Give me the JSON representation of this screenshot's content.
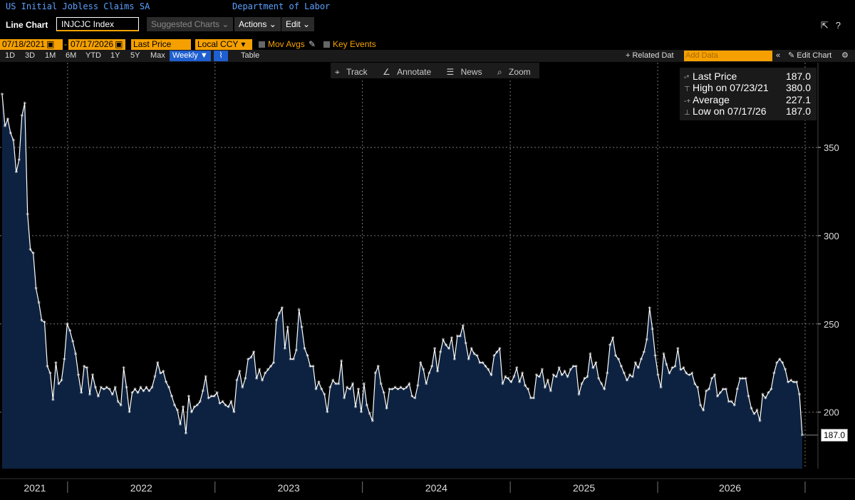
{
  "header": {
    "title": "US Initial Jobless Claims SA",
    "source": "Department of Labor"
  },
  "toolbar": {
    "chart_type": "Line Chart",
    "ticker": "INJCJC Index",
    "suggested": "Suggested Charts",
    "actions": "Actions",
    "edit": "Edit"
  },
  "controls": {
    "start_date": "07/18/2021",
    "sep": "-",
    "end_date": "07/17/2026",
    "price_field": "Last Price",
    "currency": "Local CCY",
    "mov_avgs": "Mov Avgs",
    "key_events": "Key Events"
  },
  "timeframes": [
    "1D",
    "3D",
    "1M",
    "6M",
    "YTD",
    "1Y",
    "5Y",
    "Max"
  ],
  "frequency": "Weekly ▼",
  "table_label": "Table",
  "related": "+ Related Dat",
  "add_data": "Add Data",
  "edit_chart": "Edit Chart",
  "tools": [
    "Track",
    "Annotate",
    "News",
    "Zoom"
  ],
  "legend": {
    "last_label": "Last Price",
    "last_value": "187.0",
    "high_label": "High on 07/23/21",
    "high_value": "380.0",
    "avg_label": "Average",
    "avg_value": "227.1",
    "low_label": "Low on 07/17/26",
    "low_value": "187.0"
  },
  "colors": {
    "line": "#ffffff",
    "fill": "#0d2240",
    "accent": "#f5a000",
    "link": "#5aa0ff",
    "grid": "#777777"
  },
  "chart_data": {
    "type": "area",
    "title": "US Initial Jobless Claims SA",
    "series": [
      {
        "name": "Last Price"
      }
    ],
    "x_start": "2021-07-23",
    "frequency": "weekly",
    "x_tick_labels": [
      "2021",
      "2022",
      "2023",
      "2024",
      "2025",
      "2026"
    ],
    "y_ticks": [
      200,
      250,
      300,
      350
    ],
    "ylim": [
      168,
      398
    ],
    "grid": true,
    "last_value_label": "187.0",
    "values": [
      380,
      362,
      366,
      358,
      354,
      336,
      343,
      368,
      375,
      312,
      292,
      290,
      270,
      262,
      252,
      251,
      226,
      222,
      207,
      228,
      216,
      218,
      230,
      250,
      246,
      240,
      233,
      221,
      211,
      226,
      225,
      210,
      221,
      214,
      209,
      214,
      213,
      214,
      213,
      210,
      214,
      206,
      204,
      225,
      214,
      200,
      211,
      213,
      211,
      214,
      212,
      214,
      212,
      214,
      220,
      228,
      222,
      223,
      217,
      214,
      209,
      204,
      201,
      193,
      203,
      188,
      209,
      200,
      203,
      204,
      206,
      212,
      220,
      208,
      209,
      209,
      211,
      205,
      206,
      204,
      203,
      206,
      200,
      218,
      223,
      214,
      219,
      230,
      231,
      234,
      219,
      224,
      218,
      222,
      224,
      226,
      228,
      252,
      256,
      259,
      236,
      248,
      230,
      230,
      235,
      258,
      248,
      236,
      232,
      226,
      226,
      213,
      217,
      213,
      210,
      200,
      214,
      218,
      216,
      216,
      229,
      208,
      214,
      213,
      216,
      203,
      213,
      200,
      216,
      204,
      199,
      195,
      222,
      226,
      216,
      211,
      202,
      213,
      213,
      214,
      213,
      214,
      213,
      214,
      216,
      209,
      208,
      215,
      228,
      224,
      216,
      222,
      226,
      236,
      223,
      234,
      241,
      238,
      236,
      242,
      230,
      243,
      243,
      249,
      239,
      230,
      236,
      233,
      232,
      228,
      228,
      226,
      224,
      221,
      232,
      234,
      236,
      216,
      220,
      219,
      217,
      220,
      225,
      217,
      222,
      215,
      213,
      208,
      208,
      221,
      220,
      224,
      214,
      218,
      212,
      221,
      220,
      225,
      221,
      223,
      220,
      224,
      226,
      226,
      210,
      216,
      219,
      220,
      233,
      225,
      228,
      219,
      216,
      213,
      222,
      238,
      242,
      232,
      230,
      226,
      222,
      218,
      221,
      220,
      228,
      225,
      230,
      234,
      241,
      259,
      247,
      232,
      221,
      214,
      233,
      227,
      222,
      225,
      226,
      236,
      224,
      225,
      222,
      221,
      222,
      216,
      214,
      204,
      201,
      212,
      213,
      219,
      221,
      209,
      211,
      213,
      213,
      206,
      206,
      204,
      213,
      219,
      219,
      219,
      209,
      202,
      199,
      201,
      195,
      210,
      208,
      211,
      213,
      222,
      228,
      230,
      228,
      224,
      217,
      218,
      217,
      217,
      210,
      187
    ]
  }
}
